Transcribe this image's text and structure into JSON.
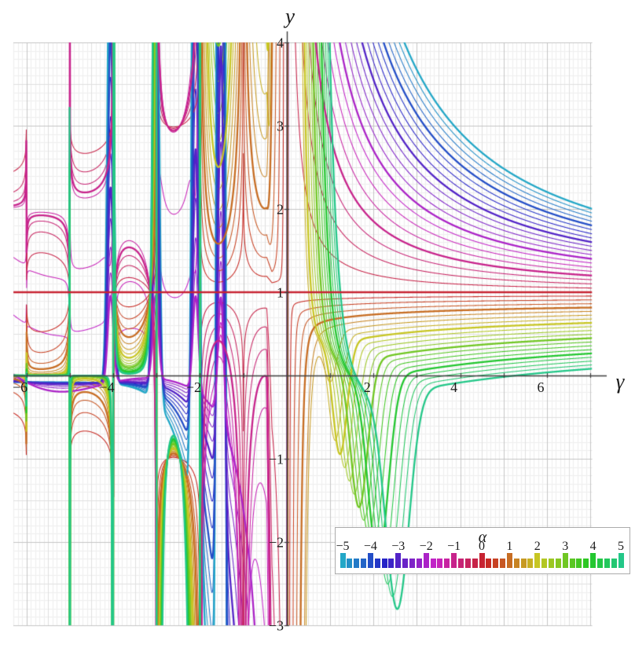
{
  "page": {
    "background": "#ffffff"
  },
  "plot": {
    "y_axis_title": "y",
    "x_axis_title": "γ",
    "x_ticks": {
      "values": [
        -6,
        -4,
        -2,
        2,
        4,
        6
      ],
      "labels": [
        "−6",
        "−4",
        "−2",
        "2",
        "4",
        "6"
      ]
    },
    "y_ticks": {
      "values": [
        4,
        3,
        2,
        1,
        -1,
        -2,
        -3
      ],
      "labels": [
        "4",
        "3",
        "2",
        "1",
        "−1",
        "−2",
        "−3"
      ]
    },
    "grid_colors": {
      "minor": "#eeeeee",
      "medium": "#e0e0e0",
      "major": "#c5c5c5"
    },
    "axis_color": "#3d3d3d"
  },
  "legend": {
    "title": "α",
    "tick_values": [
      -5,
      -4,
      -3,
      -2,
      -1,
      0,
      1,
      2,
      3,
      4,
      5
    ],
    "tick_labels": [
      "−5",
      "−4",
      "−3",
      "−2",
      "−1",
      "0",
      "1",
      "2",
      "3",
      "4",
      "5"
    ],
    "border_color": "#ababab"
  },
  "chart_data": {
    "type": "line",
    "title": "",
    "xlabel": "γ",
    "ylabel": "y",
    "xlim": [
      -6.3,
      7.04
    ],
    "ylim": [
      -3,
      4
    ],
    "grid": "on (minor 0.1, medium 0.5, major 1.0 steps)",
    "legend_position": "framed color-bar legend, bottom right",
    "parameter": {
      "name": "α",
      "min": -5,
      "max": 5,
      "step": 0.25,
      "count": 41
    },
    "colormap_hsl": {
      "hue_at_alpha_minus5": 192,
      "hue_step_per_unit_alpha": 32.5,
      "saturation_pct": 70,
      "lightness_pct": 46
    },
    "series_rule": "one curve y(γ) per α value; α = 0 gives the horizontal crimson line y = 1; integer-α curves are drawn thicker (they match the taller bars in the legend)",
    "key_values": {
      "alpha0_line_y": 1,
      "y_at_gamma7_by_integer_alpha": {
        "-5": 2.0,
        "-4": 1.76,
        "-3": 1.59,
        "-2": 1.41,
        "-1": 1.22,
        "0": 1.0,
        "1": 0.8,
        "2": 0.64,
        "3": 0.47,
        "4": 0.29,
        "5": 0.1
      },
      "right_side_behavior": "all curves converge to y = 1 as γ → +∞; α < 0 curves approach from above (≈ 1 + 1.89|α|/γ^1.15), α > 0 from below (≈ 1 − 0.33α/γ^0.3)",
      "top_exit_gamma_for_negative_alpha": {
        "-5": 2.9,
        "-4": 2.4,
        "-3": 1.8,
        "-2": 1.3,
        "-1": 0.8
      },
      "negative_side_features": "vertical pole spikes flanking γ = −1, −2, −3, −4, −5, −6; nested U and ∩ shaped red/crimson curves between consecutive integers mirrored about y = 1; dense cyan-blue vertical bands near γ ≈ −1.5, −2.1, −3.0, −4.05; fans of blue→cyan curves sloping toward y = 0 and pinching near even negative integers; orange arches below the axis around γ ≈ −2.5",
      "origin_features": "near γ = 0 warm (α > 0) curves run off to ±∞ as near-vertical orange/yellow/green lines for 0 < γ < 0.6, and cool (α < 0) curves descend steeply from the top between γ ≈ 0.8 and 3"
    }
  }
}
